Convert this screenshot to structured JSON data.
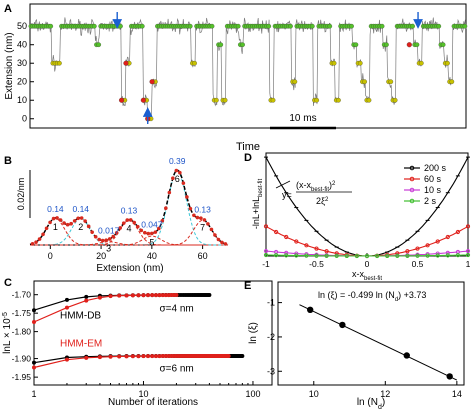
{
  "colors": {
    "trace": "#7a7a7a",
    "state_green": "#55c12a",
    "state_yellow": "#c8c200",
    "state_red": "#e0201b",
    "arrow_blue": "#1a5fd0",
    "cyan_dash": "#3fc7d6",
    "red_dash": "#d82a1f",
    "blue_label": "#1e55c8",
    "p200": "#000000",
    "p60": "#e0201b",
    "p10": "#c93bd6",
    "p2": "#3fbf2f",
    "hmm_db": "#000000",
    "hmm_em": "#e0201b"
  },
  "panel_labels": {
    "A": "A",
    "B": "B",
    "C": "C",
    "D": "D",
    "E": "E"
  },
  "chart_data": [
    {
      "panel": "A",
      "type": "line",
      "ylabel": "Extension (nm)",
      "xlabel": "Time",
      "yticks": [
        0,
        10,
        20,
        30,
        40,
        50
      ],
      "ylim": [
        -5,
        62
      ],
      "scale_bar_label": "10 ms",
      "states": [
        50,
        40,
        30,
        20,
        10,
        0
      ],
      "segments": [
        [
          0,
          50
        ],
        [
          3,
          50
        ],
        [
          5,
          30
        ],
        [
          7,
          50
        ],
        [
          14,
          50
        ],
        [
          15,
          40
        ],
        [
          16,
          50
        ],
        [
          20,
          50
        ],
        [
          21,
          10
        ],
        [
          22,
          30
        ],
        [
          23,
          50
        ],
        [
          25,
          50
        ],
        [
          26,
          10
        ],
        [
          27,
          0
        ],
        [
          28,
          20
        ],
        [
          29,
          50
        ],
        [
          36,
          50
        ],
        [
          37,
          30
        ],
        [
          38,
          50
        ],
        [
          41,
          50
        ],
        [
          42,
          10
        ],
        [
          43,
          40
        ],
        [
          44,
          10
        ],
        [
          45,
          50
        ],
        [
          47,
          50
        ],
        [
          48,
          40
        ],
        [
          49,
          50
        ],
        [
          54,
          50
        ],
        [
          55,
          10
        ],
        [
          56,
          50
        ],
        [
          59,
          50
        ],
        [
          60,
          20
        ],
        [
          61,
          50
        ],
        [
          64,
          50
        ],
        [
          65,
          10
        ],
        [
          66,
          50
        ],
        [
          68,
          50
        ],
        [
          69,
          30
        ],
        [
          70,
          10
        ],
        [
          71,
          50
        ],
        [
          73,
          50
        ],
        [
          74,
          40
        ],
        [
          75,
          30
        ],
        [
          76,
          20
        ],
        [
          77,
          10
        ],
        [
          78,
          50
        ],
        [
          80,
          50
        ],
        [
          81,
          40
        ],
        [
          82,
          20
        ],
        [
          83,
          10
        ],
        [
          84,
          50
        ],
        [
          87,
          50
        ],
        [
          88,
          40
        ],
        [
          89,
          30
        ],
        [
          90,
          50
        ],
        [
          93,
          50
        ],
        [
          94,
          40
        ],
        [
          95,
          30
        ],
        [
          96,
          20
        ],
        [
          97,
          50
        ],
        [
          99,
          50
        ],
        [
          100,
          50
        ]
      ],
      "red_marked_points": [
        [
          21,
          10
        ],
        [
          22,
          30
        ],
        [
          26,
          10
        ],
        [
          27,
          0
        ],
        [
          28,
          20
        ],
        [
          87,
          40
        ]
      ],
      "blue_arrows_at": [
        20,
        27,
        89
      ]
    },
    {
      "panel": "B",
      "type": "line",
      "xlabel": "Extension (nm)",
      "xticks": [
        0,
        20,
        40,
        60
      ],
      "xlim": [
        -8,
        70
      ],
      "scale_bar_label": "0.02/nm",
      "peaks": [
        {
          "label": "1",
          "center": 2,
          "weight": "0.14"
        },
        {
          "label": "2",
          "center": 12,
          "weight": "0.14"
        },
        {
          "label": "3",
          "center": 23,
          "weight": "0.017"
        },
        {
          "label": "4",
          "center": 31,
          "weight": "0.13"
        },
        {
          "label": "5",
          "center": 40,
          "weight": "0.047"
        },
        {
          "label": "6",
          "center": 50,
          "weight": "0.39"
        },
        {
          "label": "7",
          "center": 60,
          "weight": "0.13"
        }
      ]
    },
    {
      "panel": "C",
      "type": "line",
      "ylabel": "lnL × 10",
      "ylabel_exp": "-5",
      "xlabel": "Number of iterations",
      "xscale": "log",
      "xticks": [
        1,
        10,
        100
      ],
      "upper_group": {
        "yticks": [
          "-1.70",
          "-1.75",
          "-1.80"
        ],
        "annotation": "σ=4 nm",
        "series": [
          {
            "name": "HMM-DB",
            "color": "#000000",
            "x": [
              1,
              2,
              3,
              4,
              5,
              6,
              8,
              10,
              15,
              20,
              30,
              40
            ],
            "y": [
              -1.742,
              -1.714,
              -1.706,
              -1.703,
              -1.7025,
              -1.702,
              -1.7015,
              -1.7012,
              -1.701,
              -1.701,
              -1.701,
              -1.701
            ]
          },
          {
            "name": "HMM-EM",
            "color": "#e0201b",
            "x": [
              1,
              2,
              3,
              4,
              5,
              6,
              8,
              10,
              12,
              15,
              18,
              20
            ],
            "y": [
              -1.774,
              -1.735,
              -1.716,
              -1.708,
              -1.704,
              -1.7025,
              -1.7018,
              -1.7014,
              -1.7012,
              -1.7011,
              -1.701,
              -1.701
            ]
          }
        ]
      },
      "lower_group": {
        "yticks": [
          "-1.90",
          "-1.95"
        ],
        "annotation": "σ=6 nm",
        "series": [
          {
            "name": "HMM-DB",
            "color": "#000000",
            "x": [
              1,
              2,
              3,
              4,
              5,
              7,
              10,
              15,
              20,
              30,
              50,
              70,
              80
            ],
            "y": [
              -1.911,
              -1.897,
              -1.895,
              -1.894,
              -1.8935,
              -1.893,
              -1.893,
              -1.893,
              -1.893,
              -1.893,
              -1.893,
              -1.893,
              -1.893
            ]
          },
          {
            "name": "HMM-EM",
            "color": "#e0201b",
            "x": [
              1,
              2,
              3,
              4,
              5,
              7,
              10,
              15,
              20,
              30,
              40,
              50,
              60
            ],
            "y": [
              -1.924,
              -1.903,
              -1.898,
              -1.896,
              -1.895,
              -1.894,
              -1.8935,
              -1.8932,
              -1.893,
              -1.893,
              -1.893,
              -1.893,
              -1.893
            ]
          }
        ]
      }
    },
    {
      "panel": "D",
      "type": "line",
      "ylabel": "-lnL+lnL",
      "ylabel_sub": "best-fit",
      "xlabel": "x-x",
      "xlabel_sub": "best-fit",
      "xticks": [
        -1,
        -0.5,
        0,
        0.5,
        1
      ],
      "xtick_labels": [
        "-1",
        "-0.5",
        "0",
        "0.5",
        "1"
      ],
      "xlim": [
        -1,
        1
      ],
      "equation": {
        "lhs": "y=",
        "num_a": "(x-x",
        "num_sub": "best-fit",
        "num_b": ")",
        "num_sup": "2",
        "den": "2ξ",
        "den_sup": "2"
      },
      "series": [
        {
          "name": "200 s",
          "color": "#000000",
          "curvature": 1.0
        },
        {
          "name": "60 s",
          "color": "#e0201b",
          "curvature": 0.3
        },
        {
          "name": "10 s",
          "color": "#c93bd6",
          "curvature": 0.05
        },
        {
          "name": "2 s",
          "color": "#3fbf2f",
          "curvature": 0.01
        }
      ]
    },
    {
      "panel": "E",
      "type": "scatter",
      "xlabel": "ln (N",
      "xlabel_sub": "d",
      "xlabel_close": ")",
      "ylabel": "ln (ξ)",
      "xticks": [
        10,
        12,
        14
      ],
      "yticks": [
        -1,
        -2,
        -3
      ],
      "xlim": [
        9,
        14.2
      ],
      "ylim": [
        -3.4,
        -0.4
      ],
      "annotation": "ln (ξ) = -0.499 ln (N",
      "annotation_sub": "d",
      "annotation_tail": ") +3.73",
      "fit": {
        "slope": -0.499,
        "intercept": 3.73
      },
      "x": [
        9.9,
        10.8,
        12.6,
        13.8
      ],
      "y": [
        -1.21,
        -1.65,
        -2.54,
        -3.15
      ]
    }
  ]
}
